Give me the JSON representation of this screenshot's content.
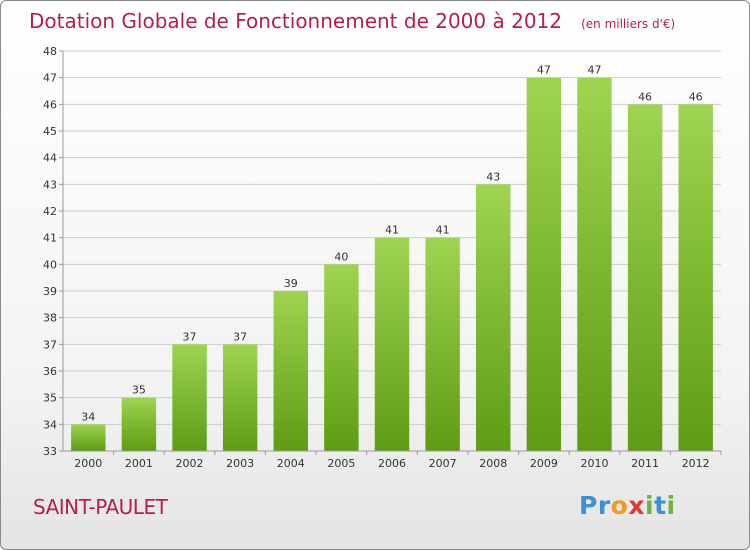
{
  "title": "Dotation Globale de Fonctionnement de 2000 à 2012",
  "unit_label": "(en milliers d'€)",
  "commune": "SAINT-PAULET",
  "logo": {
    "p": "Pr",
    "o": "o",
    "x": "x",
    "i": "i",
    "t": "t",
    "i2": "i"
  },
  "colors": {
    "title": "#b51f4e",
    "bar_top": "#9ed452",
    "bar_bottom": "#5e9c14",
    "grid": "#cccccc"
  },
  "chart_data": {
    "type": "bar",
    "categories": [
      "2000",
      "2001",
      "2002",
      "2003",
      "2004",
      "2005",
      "2006",
      "2007",
      "2008",
      "2009",
      "2010",
      "2011",
      "2012"
    ],
    "values": [
      34,
      35,
      37,
      37,
      39,
      40,
      41,
      41,
      43,
      47,
      47,
      46,
      46
    ],
    "ylim": [
      33,
      48
    ],
    "yticks": [
      33,
      34,
      35,
      36,
      37,
      38,
      39,
      40,
      41,
      42,
      43,
      44,
      45,
      46,
      47,
      48
    ],
    "grid": true,
    "title": "Dotation Globale de Fonctionnement de 2000 à 2012",
    "xlabel": "",
    "ylabel": ""
  }
}
